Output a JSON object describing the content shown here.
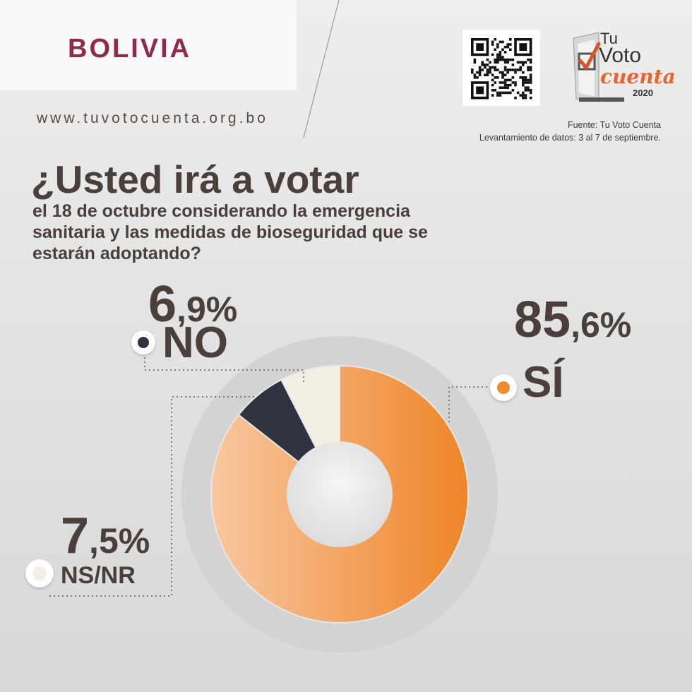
{
  "header": {
    "country": "BOLIVIA",
    "website": "www.tuvotocuenta.org.bo",
    "logo": {
      "line1": "Tu",
      "line2": "Voto",
      "line3": "cuenta",
      "year": "2020"
    }
  },
  "source": {
    "line1": "Fuente: Tu Voto Cuenta",
    "line2": "Levantamiento de datos: 3 al 7 de septiembre."
  },
  "question": {
    "title": "¿Usted irá a votar",
    "subtitle": "el 18 de octubre considerando la emergencia sanitaria y las medidas de bioseguridad que se estarán adoptando?"
  },
  "labels": {
    "si": {
      "int": "85",
      "dec": ",6%",
      "name": "SÍ"
    },
    "no": {
      "int": "6",
      "dec": ",9%",
      "name": "NO"
    },
    "nsnr": {
      "int": "7",
      "dec": ",5%",
      "name": "NS/NR"
    }
  },
  "colors": {
    "accent_brand": "#8e2b48",
    "si": "#ef8a30",
    "no": "#2f3340",
    "nsnr": "#f4efe4",
    "text": "#4a3f3a"
  },
  "chart_data": {
    "type": "pie",
    "style": "donut",
    "categories": [
      "SÍ",
      "NO",
      "NS/NR"
    ],
    "values": [
      85.6,
      6.9,
      7.5
    ],
    "unit": "%"
  }
}
